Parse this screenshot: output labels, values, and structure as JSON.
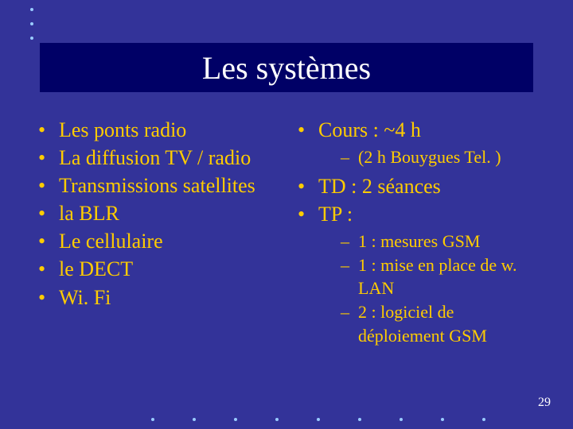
{
  "colors": {
    "slide_bg": "#333399",
    "title_band_bg": "#000066",
    "title_text": "#ffffff",
    "body_text": "#ffcc00",
    "dot": "#99ccff",
    "page_num": "#ffffff"
  },
  "title": "Les systèmes",
  "left_items": [
    "Les ponts radio",
    "La diffusion TV / radio",
    "Transmissions satellites",
    "la BLR",
    "Le cellulaire",
    "le DECT",
    "Wi. Fi"
  ],
  "right": {
    "item1": "Cours : ~4 h",
    "item1_sub": [
      "(2 h Bouygues Tel. )"
    ],
    "item2": "TD : 2 séances",
    "item3": "TP :",
    "item3_sub": [
      " 1  : mesures GSM",
      " 1 : mise en place de w. LAN",
      " 2 : logiciel de déploiement GSM"
    ]
  },
  "page_number": "29"
}
